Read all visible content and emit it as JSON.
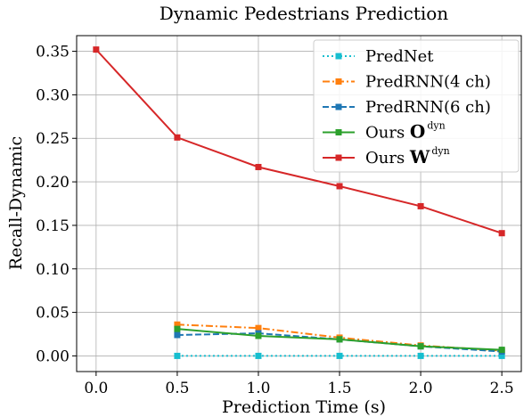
{
  "chart_data": {
    "type": "line",
    "title": "Dynamic  Pedestrians  Prediction",
    "xlabel": "Prediction Time (s)",
    "ylabel": "Recall-Dynamic",
    "xlim": [
      -0.12,
      2.62
    ],
    "ylim": [
      -0.018,
      0.368
    ],
    "xticks": [
      0.0,
      0.5,
      1.0,
      1.5,
      2.0,
      2.5
    ],
    "xtick_labels": [
      "0.0",
      "0.5",
      "1.0",
      "1.5",
      "2.0",
      "2.5"
    ],
    "yticks": [
      0.0,
      0.05,
      0.1,
      0.15,
      0.2,
      0.25,
      0.3,
      0.35
    ],
    "ytick_labels": [
      "0.00",
      "0.05",
      "0.10",
      "0.15",
      "0.20",
      "0.25",
      "0.30",
      "0.35"
    ],
    "grid": true,
    "legend_position": "top-right",
    "series": [
      {
        "name": "PredNet",
        "name_main": "PredNet",
        "name_bold": "",
        "name_sup": "",
        "color": "#17becf",
        "dash": "dotted",
        "x": [
          0.5,
          1.0,
          1.5,
          2.0,
          2.5
        ],
        "y": [
          0.0,
          0.0,
          0.0,
          0.0,
          0.0
        ]
      },
      {
        "name": "PredRNN(4 ch)",
        "name_main": "PredRNN(4 ch)",
        "name_bold": "",
        "name_sup": "",
        "color": "#ff7f0e",
        "dash": "dashdot",
        "x": [
          0.5,
          1.0,
          1.5,
          2.0,
          2.5
        ],
        "y": [
          0.036,
          0.032,
          0.021,
          0.012,
          0.006
        ]
      },
      {
        "name": "PredRNN(6 ch)",
        "name_main": "PredRNN(6 ch)",
        "name_bold": "",
        "name_sup": "",
        "color": "#1f77b4",
        "dash": "dashed",
        "x": [
          0.5,
          1.0,
          1.5,
          2.0,
          2.5
        ],
        "y": [
          0.024,
          0.026,
          0.019,
          0.011,
          0.005
        ]
      },
      {
        "name": "Ours O dyn",
        "name_main": "Ours ",
        "name_bold": "O",
        "name_sup": "dyn",
        "color": "#2ca02c",
        "dash": "solid",
        "x": [
          0.5,
          1.0,
          1.5,
          2.0,
          2.5
        ],
        "y": [
          0.031,
          0.023,
          0.019,
          0.011,
          0.007
        ]
      },
      {
        "name": "Ours W dyn",
        "name_main": "Ours ",
        "name_bold": "W",
        "name_sup": "dyn",
        "color": "#d62728",
        "dash": "solid",
        "x": [
          0.0,
          0.5,
          1.0,
          1.5,
          2.0,
          2.5
        ],
        "y": [
          0.352,
          0.251,
          0.217,
          0.195,
          0.172,
          0.141
        ]
      }
    ]
  }
}
